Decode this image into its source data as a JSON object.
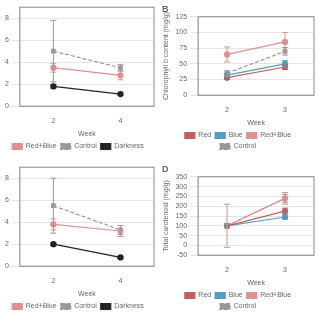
{
  "chart_data": [
    {
      "type": "line",
      "xlabel": "Week",
      "x": [
        2,
        4
      ],
      "series": [
        {
          "name": "Red+Blue",
          "color": "#e09090",
          "values": [
            3.5,
            2.8
          ],
          "yerr": [
            0.4,
            0.4
          ],
          "line_style": "solid",
          "marker": "circle"
        },
        {
          "name": "Control",
          "color": "#999999",
          "values": [
            5.0,
            3.5
          ],
          "yerr": [
            2.8,
            0.3
          ],
          "line_style": "dashed",
          "marker": "square"
        },
        {
          "name": "Darkness",
          "color": "#222222",
          "values": [
            1.8,
            1.1
          ],
          "yerr": [
            0.15,
            0.1
          ],
          "line_style": "solid",
          "marker": "circle"
        }
      ],
      "xlim": [
        1,
        5
      ],
      "xticks": [
        2,
        4
      ],
      "ylim": [
        0,
        9
      ],
      "yticks": [
        0,
        2,
        4,
        6,
        8
      ],
      "grid": "y",
      "legend": "bottom"
    },
    {
      "type": "line",
      "xlabel": "Week",
      "ylabel": "Chlorophyll b content (mg/g)",
      "annotations": [
        "B"
      ],
      "x": [
        2,
        3
      ],
      "series": [
        {
          "name": "Red",
          "color": "#c06060",
          "values": [
            28,
            45
          ],
          "yerr": [
            3,
            4
          ],
          "line_style": "solid",
          "marker": "circle"
        },
        {
          "name": "Blue",
          "color": "#50a0c0",
          "values": [
            32,
            50
          ],
          "yerr": [
            3,
            5
          ],
          "line_style": "solid",
          "marker": "circle"
        },
        {
          "name": "Red+Blue",
          "color": "#e09090",
          "values": [
            65,
            85
          ],
          "yerr": [
            12,
            15
          ],
          "line_style": "solid",
          "marker": "circle"
        },
        {
          "name": "Control",
          "color": "#999999",
          "values": [
            35,
            70
          ],
          "yerr": [
            4,
            6
          ],
          "line_style": "dashed",
          "marker": "square"
        }
      ],
      "xlim": [
        1.5,
        3.5
      ],
      "xticks": [
        2,
        3
      ],
      "ylim": [
        0,
        125
      ],
      "yticks": [
        0,
        25,
        50,
        75,
        100,
        125
      ],
      "grid": "y",
      "legend": "bottom"
    },
    {
      "type": "line",
      "xlabel": "Week",
      "x": [
        2,
        4
      ],
      "series": [
        {
          "name": "Red+Blue",
          "color": "#e09090",
          "values": [
            3.8,
            3.2
          ],
          "yerr": [
            0.5,
            0.5
          ],
          "line_style": "solid",
          "marker": "circle"
        },
        {
          "name": "Control",
          "color": "#999999",
          "values": [
            5.5,
            3.3
          ],
          "yerr": [
            2.5,
            0.4
          ],
          "line_style": "dashed",
          "marker": "square"
        },
        {
          "name": "Darkness",
          "color": "#222222",
          "values": [
            2.0,
            0.8
          ],
          "yerr": [
            0.15,
            0.1
          ],
          "line_style": "solid",
          "marker": "circle"
        }
      ],
      "xlim": [
        1,
        5
      ],
      "xticks": [
        2,
        4
      ],
      "ylim": [
        0,
        9
      ],
      "yticks": [
        0,
        2,
        4,
        6,
        8
      ],
      "grid": "y",
      "legend": "bottom"
    },
    {
      "type": "line",
      "xlabel": "Week",
      "ylabel": "Total carotenoid (mg/g)",
      "annotations": [
        "D"
      ],
      "x": [
        2,
        3
      ],
      "series": [
        {
          "name": "Red",
          "color": "#c06060",
          "values": [
            100,
            175
          ],
          "yerr": [
            10,
            15
          ],
          "line_style": "solid",
          "marker": "circle"
        },
        {
          "name": "Blue",
          "color": "#50a0c0",
          "values": [
            100,
            145
          ],
          "yerr": [
            8,
            12
          ],
          "line_style": "solid",
          "marker": "circle"
        },
        {
          "name": "Red+Blue",
          "color": "#e09090",
          "values": [
            100,
            240
          ],
          "yerr": [
            110,
            30
          ],
          "line_style": "solid",
          "marker": "circle"
        },
        {
          "name": "Control",
          "color": "#999999",
          "values": [
            100,
            240
          ],
          "yerr": [
            10,
            20
          ],
          "line_style": "dashed",
          "marker": "square"
        }
      ],
      "xlim": [
        1.5,
        3.5
      ],
      "xticks": [
        2,
        3
      ],
      "ylim": [
        -50,
        350
      ],
      "yticks": [
        -50,
        0,
        50,
        100,
        150,
        200,
        250,
        300,
        350
      ],
      "grid": "y",
      "legend": "bottom"
    }
  ]
}
